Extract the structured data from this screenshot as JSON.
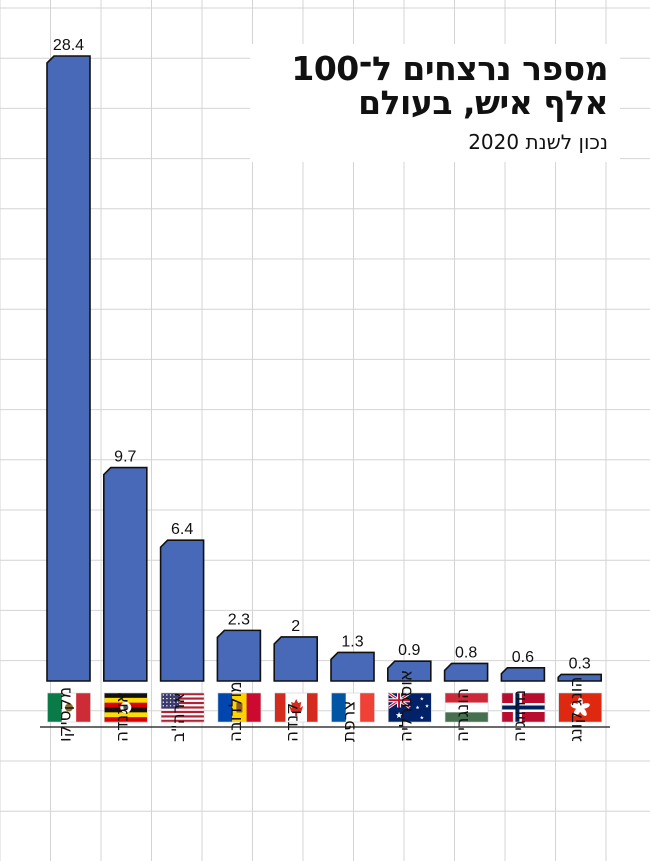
{
  "title": {
    "line1": "מספר נרצחים ל־100",
    "line2": "אלף איש, בעולם",
    "subtitle": "נכון לשנת 2020"
  },
  "chart_data": {
    "type": "bar",
    "title": "מספר נרצחים ל־100 אלף איש, בעולם",
    "subtitle": "נכון לשנת 2020",
    "categories": [
      "מקסיקו",
      "אוגנדה",
      "ארה\"ב",
      "מולדובה",
      "קנדה",
      "צרפת",
      "אוסטרליה",
      "הונגריה",
      "נורווגיה",
      "הונג קונג"
    ],
    "values": [
      28.4,
      9.7,
      6.4,
      2.3,
      2,
      1.3,
      0.9,
      0.8,
      0.6,
      0.3
    ],
    "value_labels": [
      "28.4",
      "9.7",
      "6.4",
      "2.3",
      "2",
      "1.3",
      "0.9",
      "0.8",
      "0.6",
      "0.3"
    ],
    "flags": [
      "mexico-flag",
      "uganda-flag",
      "usa-flag",
      "moldova-flag",
      "canada-flag",
      "france-flag",
      "australia-flag",
      "hungary-flag",
      "norway-flag",
      "hong-kong-flag"
    ],
    "grid": true,
    "legend": "none",
    "ylim": [
      0,
      28.4
    ]
  },
  "colors": {
    "bar": "#4868b8",
    "bar_outline": "#111111",
    "grid": "#d4d4d4"
  }
}
